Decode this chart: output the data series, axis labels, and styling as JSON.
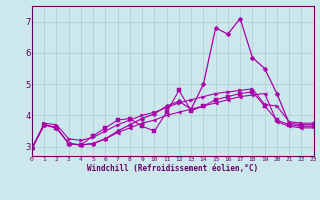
{
  "xlabel": "Windchill (Refroidissement éolien,°C)",
  "background_color": "#cce8ec",
  "grid_color": "#aacccc",
  "line_color": "#aa00aa",
  "x_values": [
    0,
    1,
    2,
    3,
    4,
    5,
    6,
    7,
    8,
    9,
    10,
    11,
    12,
    13,
    14,
    15,
    16,
    17,
    18,
    19,
    20,
    21,
    22,
    23
  ],
  "line_upper": [
    2.95,
    3.75,
    3.7,
    3.25,
    3.2,
    3.3,
    3.5,
    3.7,
    3.85,
    4.0,
    4.1,
    4.25,
    4.4,
    4.5,
    4.6,
    4.7,
    4.75,
    4.8,
    4.85,
    4.35,
    4.3,
    3.8,
    3.75,
    3.75
  ],
  "line_lower": [
    2.95,
    3.7,
    3.6,
    3.1,
    3.05,
    3.1,
    3.25,
    3.45,
    3.6,
    3.75,
    3.85,
    4.0,
    4.1,
    4.2,
    4.3,
    4.4,
    4.5,
    4.6,
    4.65,
    4.7,
    3.8,
    3.65,
    3.6,
    3.6
  ],
  "line_spike": [
    2.95,
    3.7,
    3.6,
    3.1,
    3.05,
    3.1,
    3.25,
    3.5,
    3.7,
    3.9,
    4.05,
    4.3,
    4.45,
    4.2,
    5.0,
    6.8,
    6.6,
    7.1,
    5.85,
    5.5,
    4.7,
    3.75,
    3.7,
    3.7
  ],
  "line_mid": [
    2.95,
    3.7,
    3.6,
    3.1,
    3.05,
    3.35,
    3.6,
    3.85,
    3.9,
    3.65,
    3.5,
    4.1,
    4.8,
    4.15,
    4.3,
    4.5,
    4.6,
    4.7,
    4.75,
    4.3,
    3.85,
    3.7,
    3.65,
    3.65
  ],
  "ylim": [
    2.7,
    7.5
  ],
  "xlim": [
    0,
    23
  ],
  "yticks": [
    3,
    4,
    5,
    6,
    7
  ],
  "xticks": [
    0,
    1,
    2,
    3,
    4,
    5,
    6,
    7,
    8,
    9,
    10,
    11,
    12,
    13,
    14,
    15,
    16,
    17,
    18,
    19,
    20,
    21,
    22,
    23
  ],
  "tick_color": "#660066",
  "spine_color": "#660066"
}
